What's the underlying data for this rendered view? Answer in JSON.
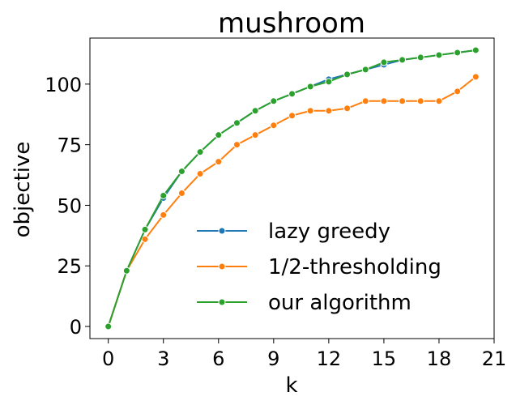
{
  "chart_data": {
    "type": "line",
    "title": "mushroom",
    "xlabel": "k",
    "ylabel": "objective",
    "xlim": [
      -1,
      21
    ],
    "ylim": [
      -5,
      119
    ],
    "xticks": [
      0,
      3,
      6,
      9,
      12,
      15,
      18,
      21
    ],
    "yticks": [
      0,
      25,
      50,
      75,
      100
    ],
    "grid": false,
    "legend_position": "lower-right",
    "x": [
      0,
      1,
      2,
      3,
      4,
      5,
      6,
      7,
      8,
      9,
      10,
      11,
      12,
      13,
      14,
      15,
      16,
      17,
      18,
      19,
      20
    ],
    "series": [
      {
        "name": "lazy greedy",
        "color": "#1f77b4",
        "values": [
          0,
          23,
          40,
          53,
          64,
          72,
          79,
          84,
          89,
          93,
          96,
          99,
          102,
          104,
          106,
          108,
          110,
          111,
          112,
          113,
          114
        ]
      },
      {
        "name": "1/2-thresholding",
        "color": "#ff7f0e",
        "values": [
          0,
          23,
          36,
          46,
          55,
          63,
          68,
          75,
          79,
          83,
          87,
          89,
          89,
          90,
          93,
          93,
          93,
          93,
          93,
          97,
          103
        ]
      },
      {
        "name": "our algorithm",
        "color": "#2ca02c",
        "values": [
          0,
          23,
          40,
          54,
          64,
          72,
          79,
          84,
          89,
          93,
          96,
          99,
          101,
          104,
          106,
          109,
          110,
          111,
          112,
          113,
          114
        ]
      }
    ]
  }
}
